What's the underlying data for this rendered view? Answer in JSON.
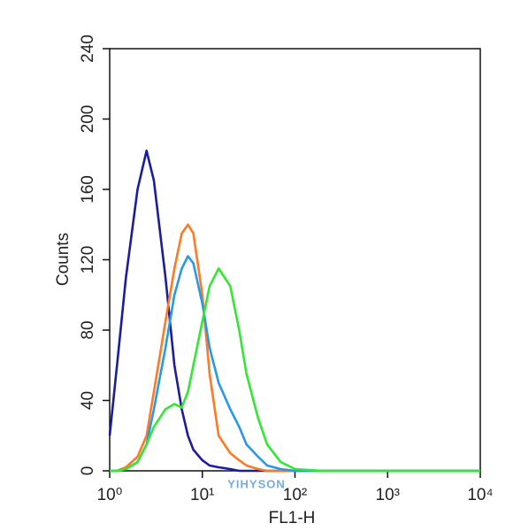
{
  "chart_data": {
    "type": "line",
    "x_label": "FL1-H",
    "y_label": "Counts",
    "watermark": "YIHYSON",
    "x_scale": "log",
    "xlim": [
      1,
      10000
    ],
    "xticks": [
      {
        "value": 1,
        "label": "10⁰"
      },
      {
        "value": 10,
        "label": "10¹"
      },
      {
        "value": 100,
        "label": "10²"
      },
      {
        "value": 1000,
        "label": "10³"
      },
      {
        "value": 10000,
        "label": "10⁴"
      }
    ],
    "ylim": [
      0,
      240
    ],
    "yticks": [
      0,
      40,
      80,
      120,
      160,
      200,
      240
    ],
    "x": [
      1,
      1.2,
      1.5,
      2,
      2.5,
      3,
      4,
      5,
      6,
      7,
      8,
      10,
      12,
      15,
      20,
      25,
      30,
      40,
      50,
      70,
      100,
      200,
      1000,
      10000
    ],
    "series": [
      {
        "color": "#1c1ca0",
        "values": [
          20,
          60,
          110,
          160,
          182,
          165,
          110,
          60,
          35,
          20,
          12,
          6,
          3,
          2,
          1,
          0,
          0,
          0,
          0,
          0,
          0,
          0,
          0,
          0
        ]
      },
      {
        "color": "#ff7a22",
        "values": [
          0,
          0,
          2,
          8,
          20,
          45,
          85,
          115,
          135,
          140,
          135,
          100,
          55,
          20,
          10,
          6,
          3,
          1,
          0,
          0,
          0,
          0,
          0,
          0
        ]
      },
      {
        "color": "#2898e8",
        "values": [
          0,
          0,
          1,
          5,
          15,
          35,
          70,
          100,
          115,
          122,
          118,
          95,
          70,
          50,
          35,
          25,
          15,
          8,
          3,
          1,
          0,
          0,
          0,
          0
        ]
      },
      {
        "color": "#33e833",
        "values": [
          0,
          0,
          1,
          5,
          15,
          25,
          35,
          38,
          36,
          45,
          60,
          85,
          105,
          115,
          105,
          80,
          55,
          30,
          15,
          5,
          1,
          0,
          0,
          0
        ]
      }
    ]
  }
}
